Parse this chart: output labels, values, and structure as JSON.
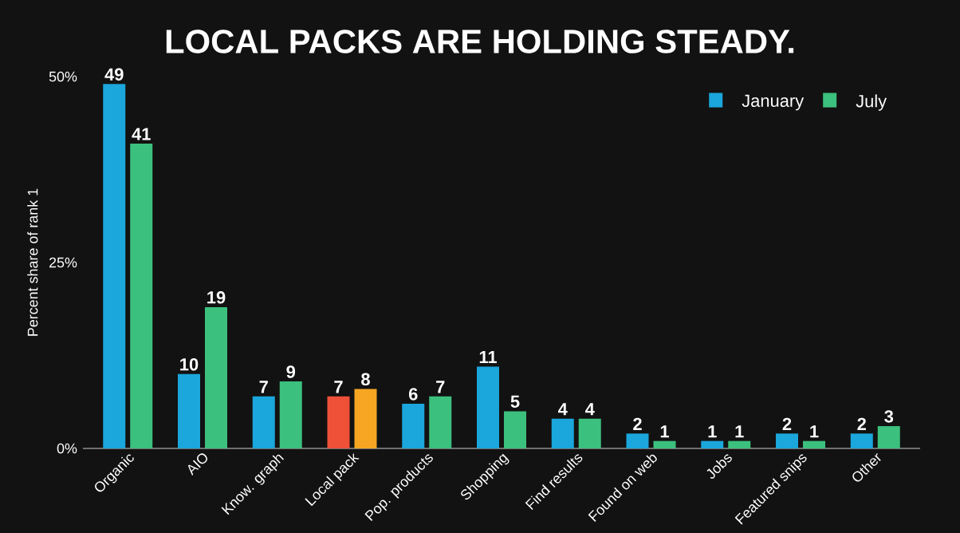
{
  "chart_data": {
    "type": "bar",
    "title": "LOCAL PACKS ARE HOLDING STEADY.",
    "ylabel": "Percent share of rank 1",
    "categories": [
      "Organic",
      "AIO",
      "Know. graph",
      "Local pack",
      "Pop. products",
      "Shopping",
      "Find results",
      "Found on web",
      "Jobs",
      "Featured snips",
      "Other"
    ],
    "series": [
      {
        "name": "January",
        "color": "#1ba6dc",
        "colors": [
          "#1ba6dc",
          "#1ba6dc",
          "#1ba6dc",
          "#ee5138",
          "#1ba6dc",
          "#1ba6dc",
          "#1ba6dc",
          "#1ba6dc",
          "#1ba6dc",
          "#1ba6dc",
          "#1ba6dc"
        ],
        "values": [
          49,
          10,
          7,
          7,
          6,
          11,
          4,
          2,
          1,
          2,
          2
        ]
      },
      {
        "name": "July",
        "color": "#3cc07e",
        "colors": [
          "#3cc07e",
          "#3cc07e",
          "#3cc07e",
          "#f6a623",
          "#3cc07e",
          "#3cc07e",
          "#3cc07e",
          "#3cc07e",
          "#3cc07e",
          "#3cc07e",
          "#3cc07e"
        ],
        "values": [
          41,
          19,
          9,
          8,
          7,
          5,
          4,
          1,
          1,
          1,
          3
        ]
      }
    ],
    "ylim": [
      0,
      50
    ],
    "yticks": [
      {
        "value": 0,
        "label": "0%"
      },
      {
        "value": 25,
        "label": "25%"
      },
      {
        "value": 50,
        "label": "50%"
      }
    ],
    "data_labels": true,
    "legend": "top right"
  }
}
